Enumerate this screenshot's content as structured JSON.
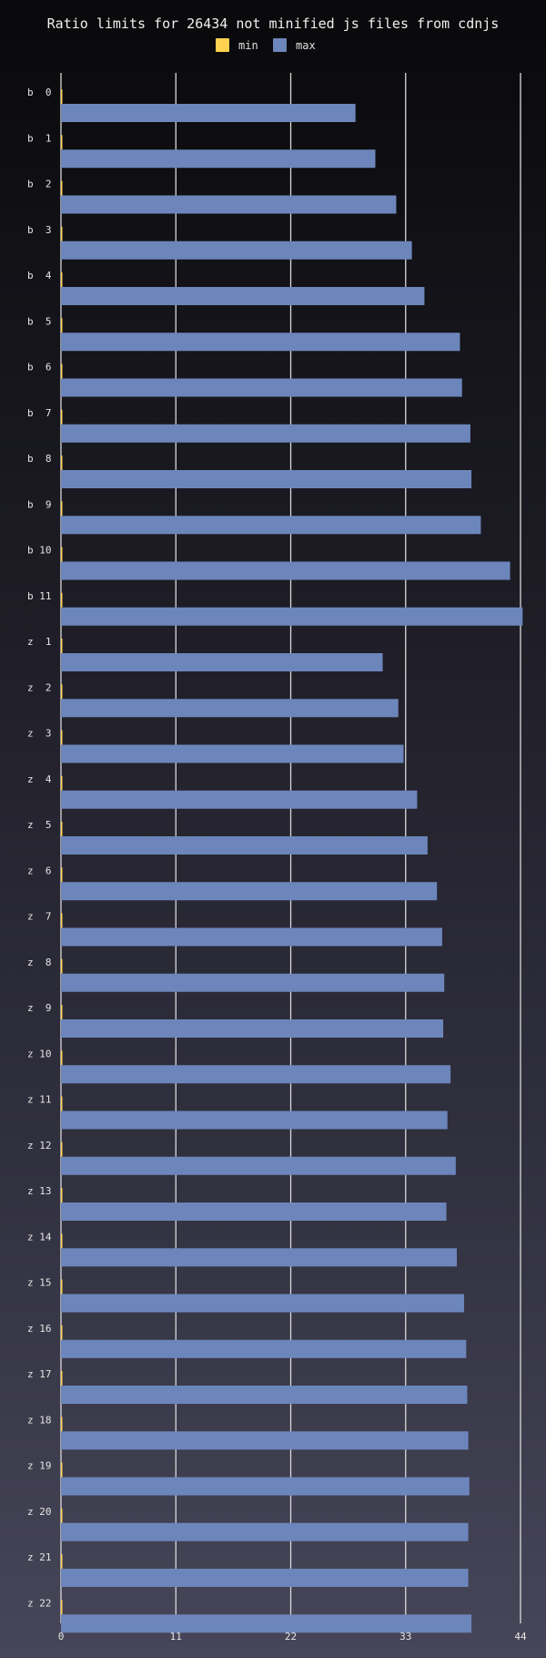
{
  "chart_data": {
    "type": "bar",
    "orientation": "horizontal",
    "title": "Ratio limits for 26434 not minified js files from cdnjs",
    "legend_position": "top",
    "grid": true,
    "xlim": [
      0,
      44
    ],
    "ticks": [
      "0",
      "11",
      "22",
      "33",
      "44"
    ],
    "categories": [
      "b  0",
      "b  1",
      "b  2",
      "b  3",
      "b  4",
      "b  5",
      "b  6",
      "b  7",
      "b  8",
      "b  9",
      "b 10",
      "b 11",
      "z  1",
      "z  2",
      "z  3",
      "z  4",
      "z  5",
      "z  6",
      "z  7",
      "z  8",
      "z  9",
      "z 10",
      "z 11",
      "z 12",
      "z 13",
      "z 14",
      "z 15",
      "z 16",
      "z 17",
      "z 18",
      "z 19",
      "z 20",
      "z 21",
      "z 22"
    ],
    "series": [
      {
        "name": "min",
        "color": "#ffd24f",
        "values": [
          0.1,
          0.1,
          0.1,
          0.1,
          0.1,
          0.1,
          0.1,
          0.1,
          0.1,
          0.1,
          0.1,
          0.1,
          0.1,
          0.1,
          0.1,
          0.1,
          0.1,
          0.1,
          0.1,
          0.1,
          0.1,
          0.1,
          0.1,
          0.1,
          0.1,
          0.1,
          0.1,
          0.1,
          0.1,
          0.1,
          0.1,
          0.1,
          0.1,
          0.1
        ]
      },
      {
        "name": "max",
        "color": "#6c86bb",
        "values": [
          28.2,
          30.1,
          32.1,
          33.6,
          34.8,
          38.2,
          38.4,
          39.2,
          39.3,
          40.2,
          43.0,
          44.2,
          30.8,
          32.3,
          32.8,
          34.1,
          35.1,
          36.0,
          36.5,
          36.7,
          36.6,
          37.3,
          37.0,
          37.8,
          36.9,
          37.9,
          38.6,
          38.8,
          38.9,
          39.0,
          39.1,
          39.0,
          39.0,
          39.3
        ]
      }
    ]
  }
}
